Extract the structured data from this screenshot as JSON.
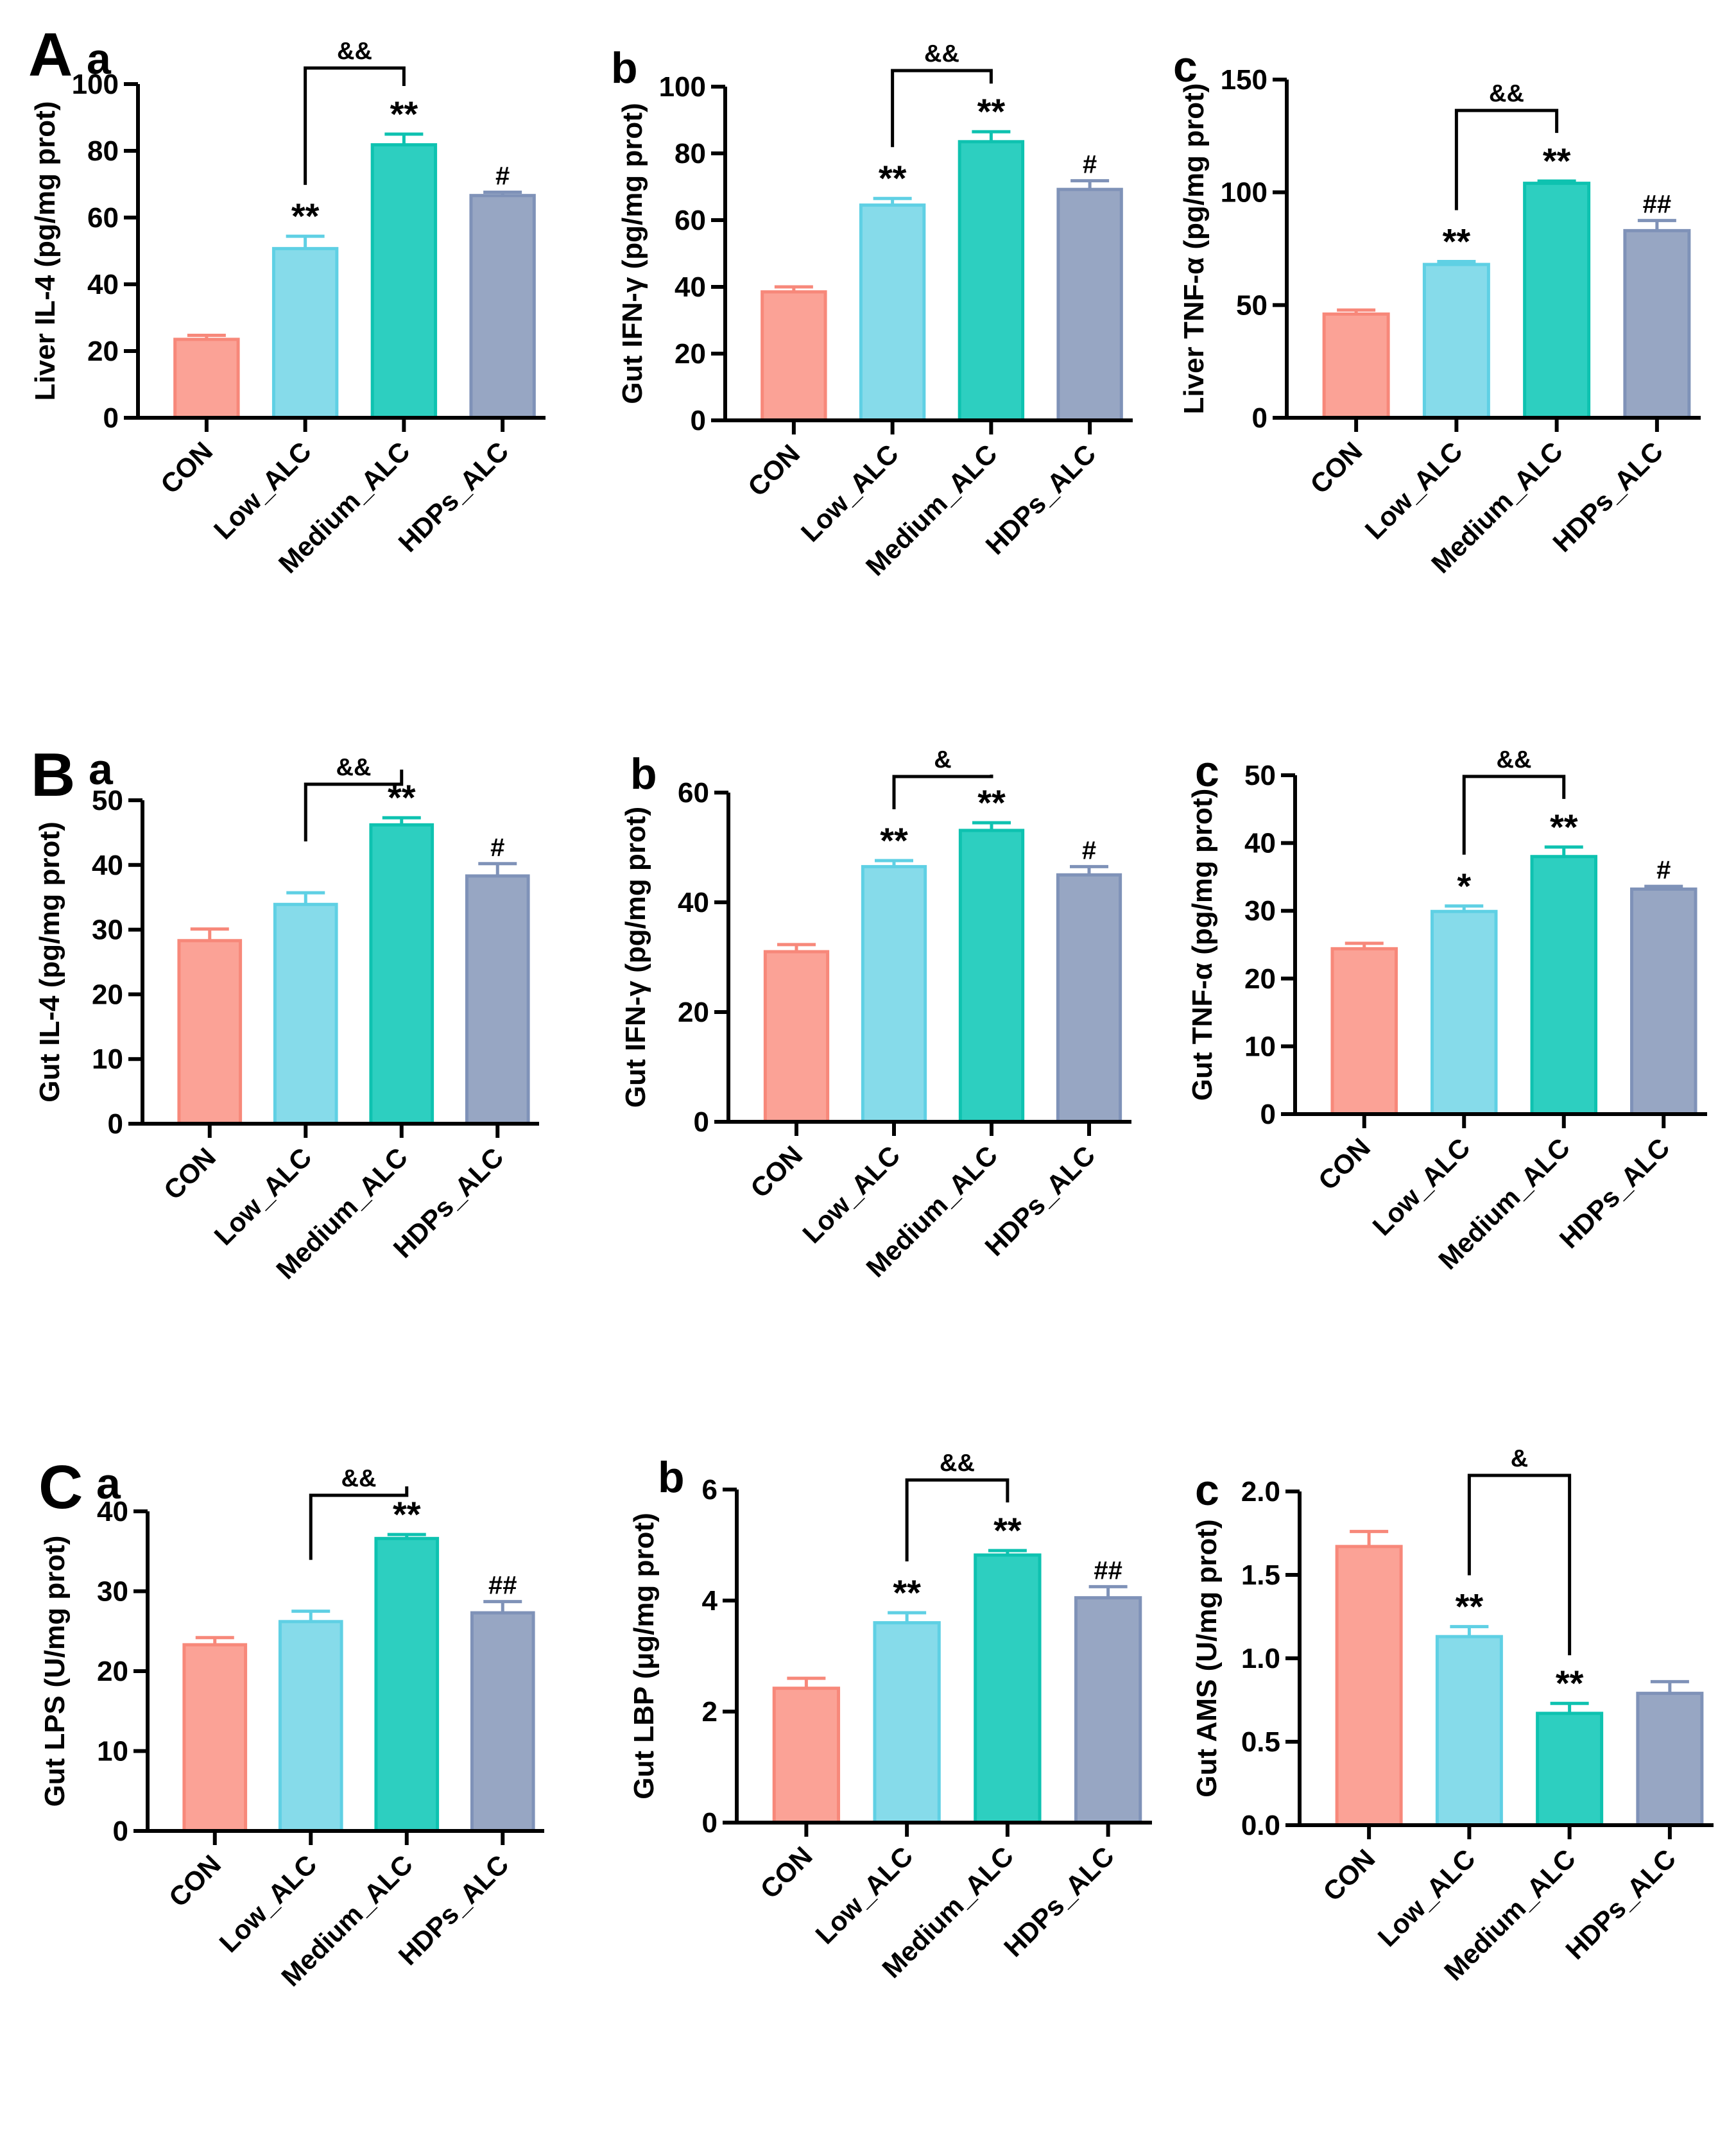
{
  "figure": {
    "row_labels": [
      "A",
      "B",
      "C"
    ],
    "colors": {
      "CON": "#FBA296",
      "Low_ALC": "#86DBEA",
      "Medium_ALC": "#2DCFC0",
      "HDPs_ALC": "#97A6C3",
      "CON_edge": "#F7887A",
      "Low_ALC_edge": "#5FD0E4",
      "Medium_ALC_edge": "#0EC2B0",
      "HDPs_ALC_edge": "#7F92B8",
      "axis": "#000000"
    }
  },
  "chart_data": [
    {
      "id": "A-a",
      "row": "A",
      "sublabel": "a",
      "type": "bar",
      "ylabel": "Liver IL-4 (pg/mg prot)",
      "categories": [
        "CON",
        "Low_ALC",
        "Medium_ALC",
        "HDPs_ALC"
      ],
      "values": [
        23.5,
        50.7,
        81.8,
        66.6
      ],
      "errors": [
        1.2,
        3.7,
        3.2,
        1.0
      ],
      "annotations": [
        "",
        "**",
        "**",
        "#"
      ],
      "bracket": {
        "from": 1,
        "to": 2,
        "label": "&&"
      },
      "ylim": [
        0,
        100
      ],
      "yticks": [
        0,
        20,
        40,
        60,
        80,
        100
      ]
    },
    {
      "id": "A-b",
      "row": "A",
      "sublabel": "b",
      "type": "bar",
      "ylabel": "Gut IFN-γ (pg/mg prot)",
      "categories": [
        "CON",
        "Low_ALC",
        "Medium_ALC",
        "HDPs_ALC"
      ],
      "values": [
        38.5,
        64.5,
        83.5,
        69.2
      ],
      "errors": [
        1.5,
        2.0,
        3.0,
        2.6
      ],
      "annotations": [
        "",
        "**",
        "**",
        "#"
      ],
      "bracket": {
        "from": 1,
        "to": 2,
        "label": "&&"
      },
      "ylim": [
        0,
        100
      ],
      "yticks": [
        0,
        20,
        40,
        60,
        80,
        100
      ]
    },
    {
      "id": "A-c",
      "row": "A",
      "sublabel": "c",
      "type": "bar",
      "ylabel": "Liver TNF-α (pg/mg prot)",
      "categories": [
        "CON",
        "Low_ALC",
        "Medium_ALC",
        "HDPs_ALC"
      ],
      "values": [
        46.0,
        68.0,
        104.0,
        83.0
      ],
      "errors": [
        1.8,
        1.3,
        1.0,
        4.5
      ],
      "annotations": [
        "",
        "**",
        "**",
        "##"
      ],
      "bracket": {
        "from": 1,
        "to": 2,
        "label": "&&"
      },
      "ylim": [
        0,
        150
      ],
      "yticks": [
        0,
        50,
        100,
        150
      ]
    },
    {
      "id": "B-a",
      "row": "B",
      "sublabel": "a",
      "type": "bar",
      "ylabel": "Gut IL-4 (pg/mg prot)",
      "categories": [
        "CON",
        "Low_ALC",
        "Medium_ALC",
        "HDPs_ALC"
      ],
      "values": [
        28.3,
        33.9,
        46.2,
        38.3
      ],
      "errors": [
        1.8,
        1.8,
        1.1,
        1.9
      ],
      "annotations": [
        "",
        "",
        "**",
        "#"
      ],
      "bracket": {
        "from": 1,
        "to": 2,
        "label": "&&"
      },
      "ylim": [
        0,
        50
      ],
      "yticks": [
        0,
        10,
        20,
        30,
        40,
        50
      ]
    },
    {
      "id": "B-b",
      "row": "B",
      "sublabel": "b",
      "type": "bar",
      "ylabel": "Gut IFN-γ (pg/mg prot)",
      "categories": [
        "CON",
        "Low_ALC",
        "Medium_ALC",
        "HDPs_ALC"
      ],
      "values": [
        31.0,
        46.5,
        53.1,
        45.0
      ],
      "errors": [
        1.3,
        1.1,
        1.4,
        1.5
      ],
      "annotations": [
        "",
        "**",
        "**",
        "#"
      ],
      "bracket": {
        "from": 1,
        "to": 2,
        "label": "&"
      },
      "ylim": [
        0,
        60
      ],
      "yticks": [
        0,
        20,
        40,
        60
      ]
    },
    {
      "id": "B-c",
      "row": "B",
      "sublabel": "c",
      "type": "bar",
      "ylabel": "Gut TNF-α (pg/mg prot)",
      "categories": [
        "CON",
        "Low_ALC",
        "Medium_ALC",
        "HDPs_ALC"
      ],
      "values": [
        24.4,
        29.9,
        38.0,
        33.2
      ],
      "errors": [
        0.8,
        0.8,
        1.4,
        0.4
      ],
      "annotations": [
        "",
        "*",
        "**",
        "#"
      ],
      "bracket": {
        "from": 1,
        "to": 2,
        "label": "&&"
      },
      "ylim": [
        0,
        50
      ],
      "yticks": [
        0,
        10,
        20,
        30,
        40,
        50
      ]
    },
    {
      "id": "C-a",
      "row": "C",
      "sublabel": "a",
      "type": "bar",
      "ylabel": "Gut LPS (U/mg prot)",
      "categories": [
        "CON",
        "Low_ALC",
        "Medium_ALC",
        "HDPs_ALC"
      ],
      "values": [
        23.3,
        26.2,
        36.6,
        27.3
      ],
      "errors": [
        0.9,
        1.3,
        0.5,
        1.4
      ],
      "annotations": [
        "",
        "",
        "**",
        "##"
      ],
      "bracket": {
        "from": 1,
        "to": 2,
        "label": "&&"
      },
      "ylim": [
        0,
        40
      ],
      "yticks": [
        0,
        10,
        20,
        30,
        40
      ]
    },
    {
      "id": "C-b",
      "row": "C",
      "sublabel": "b",
      "type": "bar",
      "ylabel": "Gut LBP (μg/mg prot)",
      "categories": [
        "CON",
        "Low_ALC",
        "Medium_ALC",
        "HDPs_ALC"
      ],
      "values": [
        2.42,
        3.6,
        4.82,
        4.05
      ],
      "errors": [
        0.18,
        0.18,
        0.08,
        0.2
      ],
      "annotations": [
        "",
        "**",
        "**",
        "##"
      ],
      "bracket": {
        "from": 1,
        "to": 2,
        "label": "&&"
      },
      "ylim": [
        0,
        6
      ],
      "yticks": [
        0,
        2,
        4,
        6
      ]
    },
    {
      "id": "C-c",
      "row": "C",
      "sublabel": "c",
      "type": "bar",
      "ylabel": "Gut AMS (U/mg prot)",
      "categories": [
        "CON",
        "Low_ALC",
        "Medium_ALC",
        "HDPs_ALC"
      ],
      "values": [
        1.67,
        1.13,
        0.67,
        0.79
      ],
      "errors": [
        0.09,
        0.06,
        0.06,
        0.07
      ],
      "annotations": [
        "",
        "**",
        "**",
        ""
      ],
      "bracket": {
        "from": 1,
        "to": 2,
        "label": "&"
      },
      "ylim": [
        0,
        2.0
      ],
      "yticks": [
        "0.0",
        "0.5",
        "1.0",
        "1.5",
        "2.0"
      ]
    }
  ]
}
